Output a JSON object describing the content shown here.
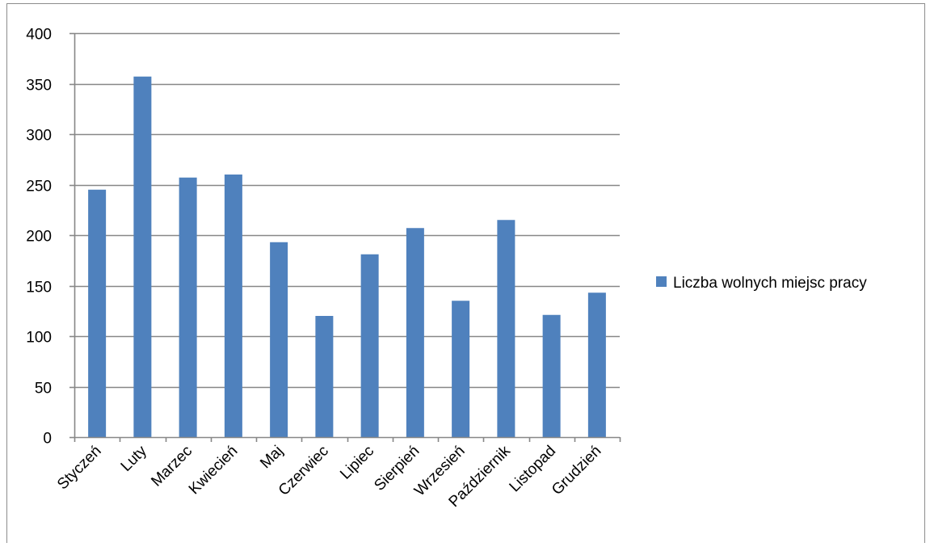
{
  "chart_data": {
    "type": "bar",
    "title": "",
    "xlabel": "",
    "ylabel": "",
    "categories": [
      "Styczeń",
      "Luty",
      "Marzec",
      "Kwiecień",
      "Maj",
      "Czerwiec",
      "Lipiec",
      "Sierpień",
      "Wrzesień",
      "Październik",
      "Listopad",
      "Grudzień"
    ],
    "series": [
      {
        "name": "Liczba wolnych miejsc pracy",
        "values": [
          245,
          357,
          257,
          260,
          193,
          120,
          181,
          207,
          135,
          215,
          121,
          143
        ],
        "color": "#4f81bd"
      }
    ],
    "ylim": [
      0,
      400
    ],
    "yticks": [
      "0",
      "50",
      "100",
      "150",
      "200",
      "250",
      "300",
      "350",
      "400"
    ],
    "grid": true,
    "legend_position": "right"
  }
}
